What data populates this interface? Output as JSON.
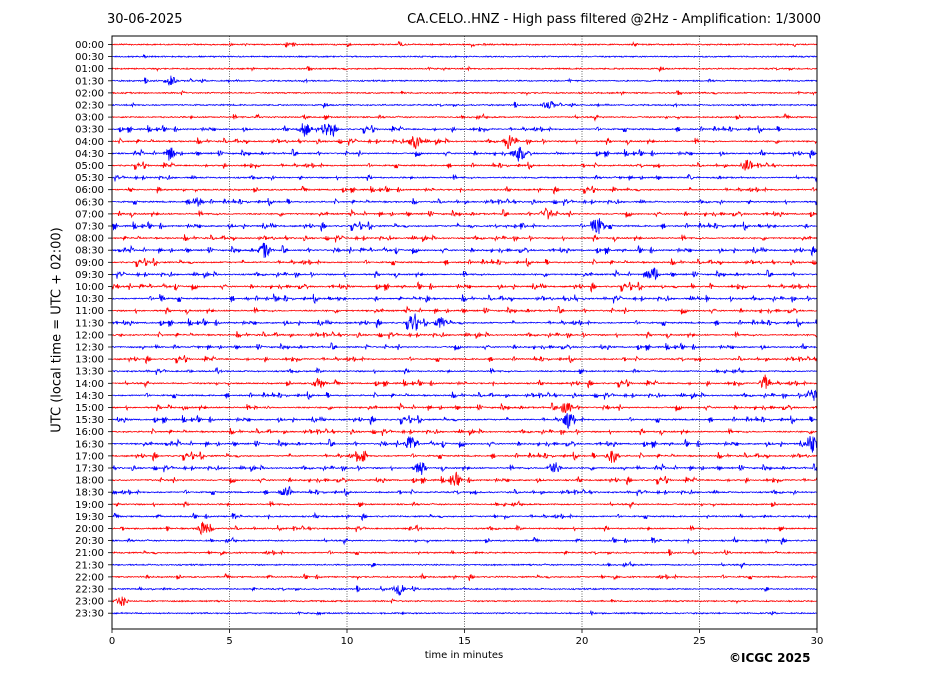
{
  "header": {
    "date": "30-06-2025",
    "title": "CA.CELO..HNZ - High pass filtered @2Hz - Amplification: 1/3000"
  },
  "footer": {
    "copyright": "©ICGC 2025"
  },
  "chart_data": {
    "type": "line",
    "title": "CA.CELO..HNZ - High pass filtered @2Hz - Amplification: 1/3000",
    "xlabel": "time in minutes",
    "ylabel": "UTC (local time = UTC + 02:00)",
    "xlim": [
      0,
      30
    ],
    "x_ticks": [
      0,
      5,
      10,
      15,
      20,
      25,
      30
    ],
    "grid": "vertical dotted at x ticks",
    "row_labels": [
      "00:00",
      "00:30",
      "01:00",
      "01:30",
      "02:00",
      "02:30",
      "03:00",
      "03:30",
      "04:00",
      "04:30",
      "05:00",
      "05:30",
      "06:00",
      "06:30",
      "07:00",
      "07:30",
      "08:00",
      "08:30",
      "09:00",
      "09:30",
      "10:00",
      "10:30",
      "11:00",
      "11:30",
      "12:00",
      "12:30",
      "13:00",
      "13:30",
      "14:00",
      "14:30",
      "15:00",
      "15:30",
      "16:00",
      "16:30",
      "17:00",
      "17:30",
      "18:00",
      "18:30",
      "19:00",
      "19:30",
      "20:00",
      "20:30",
      "21:00",
      "21:30",
      "22:00",
      "22:30",
      "23:00",
      "23:30"
    ],
    "series_colors": [
      "#ff0000",
      "#0000ff"
    ],
    "trace_activity": [
      0.05,
      0.05,
      0.08,
      0.1,
      0.08,
      0.08,
      0.3,
      0.5,
      0.6,
      0.55,
      0.45,
      0.45,
      0.4,
      0.5,
      0.6,
      0.65,
      0.6,
      0.7,
      0.6,
      0.6,
      0.7,
      0.8,
      0.6,
      0.6,
      0.55,
      0.5,
      0.45,
      0.4,
      0.45,
      0.55,
      0.65,
      0.6,
      0.55,
      0.7,
      0.6,
      0.55,
      0.5,
      0.45,
      0.4,
      0.3,
      0.35,
      0.3,
      0.2,
      0.2,
      0.25,
      0.2,
      0.1,
      0.03
    ],
    "events": [
      {
        "row": "01:30",
        "minute": 2.5,
        "amp": 0.6
      },
      {
        "row": "02:30",
        "minute": 18.6,
        "amp": 0.6
      },
      {
        "row": "03:30",
        "minute": 8.2,
        "amp": 1.0
      },
      {
        "row": "03:30",
        "minute": 9.2,
        "amp": 1.0
      },
      {
        "row": "04:00",
        "minute": 12.9,
        "amp": 1.0
      },
      {
        "row": "04:00",
        "minute": 16.9,
        "amp": 1.0
      },
      {
        "row": "04:30",
        "minute": 17.3,
        "amp": 1.0
      },
      {
        "row": "04:30",
        "minute": 2.5,
        "amp": 0.8
      },
      {
        "row": "05:00",
        "minute": 27.0,
        "amp": 0.7
      },
      {
        "row": "06:30",
        "minute": 3.6,
        "amp": 0.7
      },
      {
        "row": "07:00",
        "minute": 18.5,
        "amp": 0.8
      },
      {
        "row": "07:30",
        "minute": 20.7,
        "amp": 1.0
      },
      {
        "row": "08:30",
        "minute": 6.5,
        "amp": 1.0
      },
      {
        "row": "09:30",
        "minute": 23.0,
        "amp": 1.0
      },
      {
        "row": "11:30",
        "minute": 12.8,
        "amp": 0.9
      },
      {
        "row": "11:30",
        "minute": 14.0,
        "amp": 0.8
      },
      {
        "row": "14:00",
        "minute": 8.8,
        "amp": 0.8
      },
      {
        "row": "14:00",
        "minute": 27.8,
        "amp": 1.0
      },
      {
        "row": "14:30",
        "minute": 29.8,
        "amp": 0.9
      },
      {
        "row": "15:00",
        "minute": 19.3,
        "amp": 1.0
      },
      {
        "row": "15:30",
        "minute": 19.4,
        "amp": 1.0
      },
      {
        "row": "16:30",
        "minute": 12.7,
        "amp": 1.0
      },
      {
        "row": "16:30",
        "minute": 29.8,
        "amp": 1.0
      },
      {
        "row": "17:00",
        "minute": 10.6,
        "amp": 0.9
      },
      {
        "row": "17:00",
        "minute": 21.3,
        "amp": 1.0
      },
      {
        "row": "17:30",
        "minute": 13.1,
        "amp": 0.9
      },
      {
        "row": "17:30",
        "minute": 18.8,
        "amp": 1.0
      },
      {
        "row": "18:00",
        "minute": 14.6,
        "amp": 0.7
      },
      {
        "row": "18:30",
        "minute": 7.4,
        "amp": 0.7
      },
      {
        "row": "20:00",
        "minute": 3.9,
        "amp": 1.0
      },
      {
        "row": "22:30",
        "minute": 12.2,
        "amp": 0.8
      },
      {
        "row": "23:00",
        "minute": 0.4,
        "amp": 0.6
      }
    ]
  }
}
